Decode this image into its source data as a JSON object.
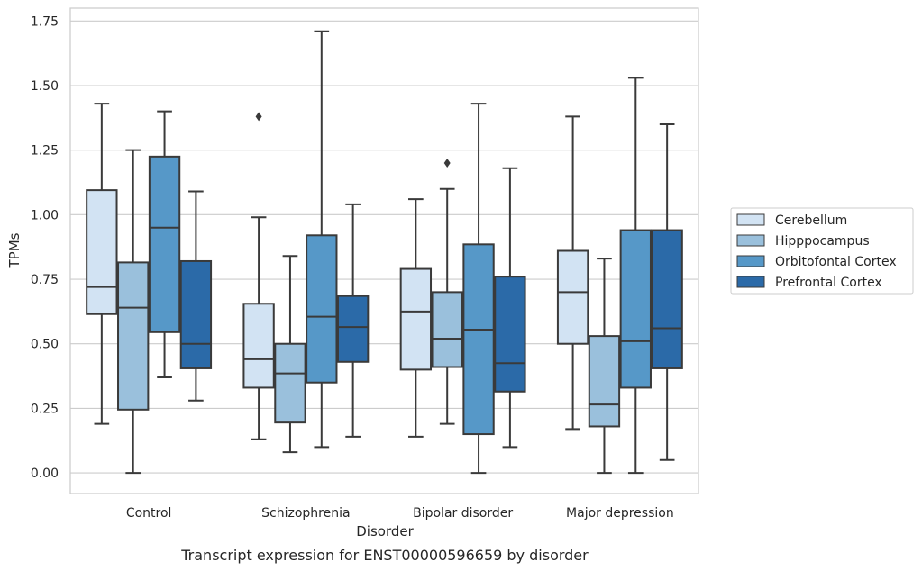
{
  "caption": "Transcript expression for ENST00000596659 by disorder",
  "chart_data": {
    "type": "box",
    "xlabel": "Disorder",
    "ylabel": "TPMs",
    "ylim": [
      -0.08,
      1.8
    ],
    "yticks": [
      "0.00",
      "0.25",
      "0.50",
      "0.75",
      "1.00",
      "1.25",
      "1.50",
      "1.75"
    ],
    "grid": "horizontal",
    "legend_position": "right",
    "categories": [
      "Control",
      "Schizophrenia",
      "Bipolar disorder",
      "Major depression"
    ],
    "series": [
      {
        "name": "Cerebellum",
        "color": "#d2e3f3",
        "boxes": [
          {
            "min": 0.19,
            "q1": 0.615,
            "median": 0.72,
            "q3": 1.095,
            "max": 1.43,
            "outliers": []
          },
          {
            "min": 0.13,
            "q1": 0.33,
            "median": 0.44,
            "q3": 0.655,
            "max": 0.99,
            "outliers": [
              1.38
            ]
          },
          {
            "min": 0.14,
            "q1": 0.4,
            "median": 0.625,
            "q3": 0.79,
            "max": 1.06,
            "outliers": []
          },
          {
            "min": 0.17,
            "q1": 0.5,
            "median": 0.7,
            "q3": 0.86,
            "max": 1.38,
            "outliers": []
          }
        ]
      },
      {
        "name": "Hipppocampus",
        "color": "#9ac0dc",
        "boxes": [
          {
            "min": 0.0,
            "q1": 0.245,
            "median": 0.64,
            "q3": 0.815,
            "max": 1.25,
            "outliers": []
          },
          {
            "min": 0.08,
            "q1": 0.195,
            "median": 0.385,
            "q3": 0.5,
            "max": 0.84,
            "outliers": []
          },
          {
            "min": 0.19,
            "q1": 0.41,
            "median": 0.52,
            "q3": 0.7,
            "max": 1.1,
            "outliers": [
              1.2
            ]
          },
          {
            "min": 0.0,
            "q1": 0.18,
            "median": 0.265,
            "q3": 0.53,
            "max": 0.83,
            "outliers": []
          }
        ]
      },
      {
        "name": "Orbitofontal Cortex",
        "color": "#5698c8",
        "boxes": [
          {
            "min": 0.37,
            "q1": 0.545,
            "median": 0.95,
            "q3": 1.225,
            "max": 1.4,
            "outliers": []
          },
          {
            "min": 0.1,
            "q1": 0.35,
            "median": 0.605,
            "q3": 0.92,
            "max": 1.71,
            "outliers": []
          },
          {
            "min": 0.0,
            "q1": 0.15,
            "median": 0.555,
            "q3": 0.885,
            "max": 1.43,
            "outliers": []
          },
          {
            "min": 0.0,
            "q1": 0.33,
            "median": 0.51,
            "q3": 0.94,
            "max": 1.53,
            "outliers": []
          }
        ]
      },
      {
        "name": "Prefrontal Cortex",
        "color": "#2b6aa8",
        "boxes": [
          {
            "min": 0.28,
            "q1": 0.405,
            "median": 0.5,
            "q3": 0.82,
            "max": 1.09,
            "outliers": []
          },
          {
            "min": 0.14,
            "q1": 0.43,
            "median": 0.565,
            "q3": 0.685,
            "max": 1.04,
            "outliers": []
          },
          {
            "min": 0.1,
            "q1": 0.315,
            "median": 0.425,
            "q3": 0.76,
            "max": 1.18,
            "outliers": []
          },
          {
            "min": 0.05,
            "q1": 0.405,
            "median": 0.56,
            "q3": 0.94,
            "max": 1.35,
            "outliers": []
          }
        ]
      }
    ]
  }
}
